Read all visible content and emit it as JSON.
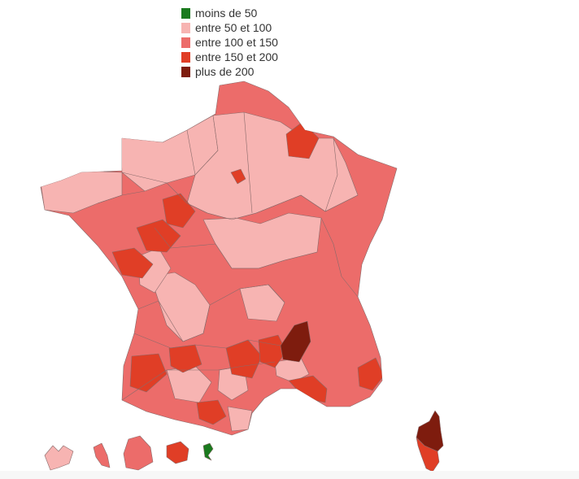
{
  "legend": {
    "items": [
      {
        "label": "moins de 50",
        "color": "#1a7a1e"
      },
      {
        "label": "entre 50 et 100",
        "color": "#f7b4b2"
      },
      {
        "label": "entre 100 et 150",
        "color": "#ec6c6a"
      },
      {
        "label": "entre 150 et 200",
        "color": "#e03e26"
      },
      {
        "label": "plus de 200",
        "color": "#7e1c0e"
      }
    ]
  },
  "regions": {
    "paris": "entre 150 et 200",
    "cotes_d_armor": "entre 50 et 100",
    "nord": "entre 100 et 150",
    "ardennes": "entre 150 et 200",
    "sarthe": "entre 150 et 200",
    "maine_et_loire": "entre 150 et 200",
    "vendee": "entre 150 et 200",
    "lozere": "plus de 200",
    "gironde": "entre 150 et 200",
    "haute_vienne": "entre 150 et 200",
    "cantal": "entre 150 et 200",
    "aveyron": "entre 150 et 200",
    "alpes_maritimes": "entre 150 et 200",
    "herault": "entre 150 et 200",
    "haute_garonne": "entre 150 et 200",
    "haute_corse": "plus de 200",
    "corse_du_sud": "entre 150 et 200",
    "guadeloupe": "entre 50 et 100",
    "martinique": "entre 100 et 150",
    "guyane": "entre 100 et 150",
    "reunion": "entre 150 et 200",
    "mayotte": "moins de 50"
  }
}
